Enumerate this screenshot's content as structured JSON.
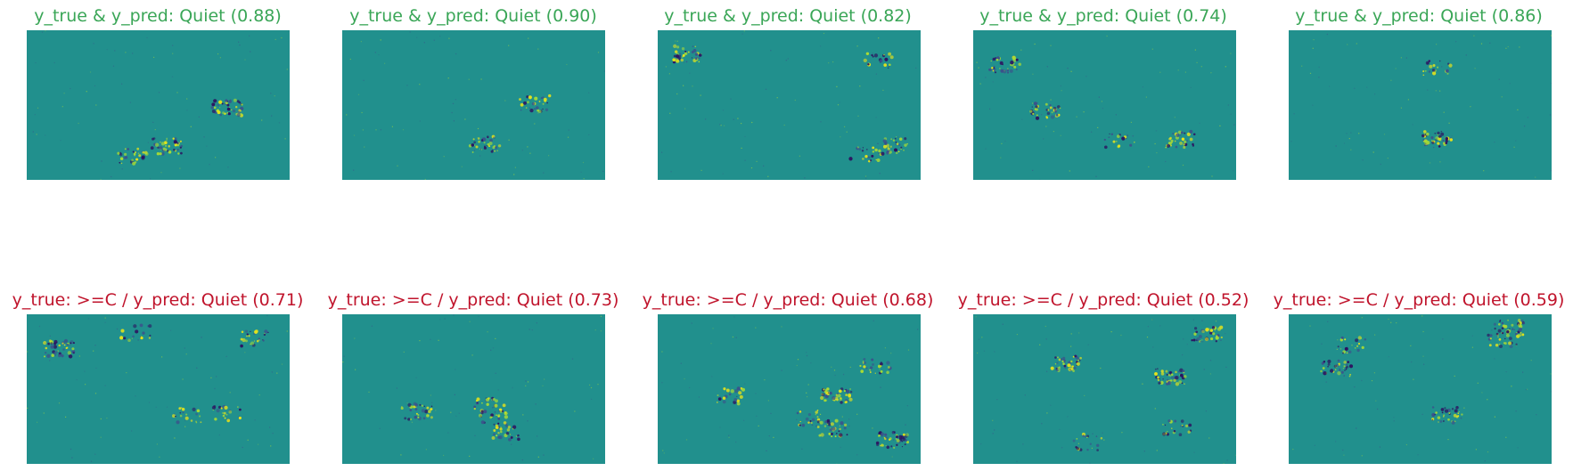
{
  "colors": {
    "correct_title": "#3aa657",
    "wrong_title": "#c0142c",
    "map_background": "#21908d",
    "positive_flux": "#e8e419",
    "positive_flux_mid": "#a8db34",
    "negative_flux": "#2d1160",
    "negative_flux_mid": "#3b528b"
  },
  "rows": [
    {
      "status": "correct",
      "panels": [
        {
          "title": "y_true & y_pred: Quiet (0.88)"
        },
        {
          "title": "y_true & y_pred: Quiet (0.90)"
        },
        {
          "title": "y_true & y_pred: Quiet (0.82)"
        },
        {
          "title": "y_true & y_pred: Quiet (0.74)"
        },
        {
          "title": "y_true & y_pred: Quiet (0.86)"
        }
      ]
    },
    {
      "status": "wrong",
      "panels": [
        {
          "title": "y_true: >=C / y_pred: Quiet (0.71)"
        },
        {
          "title": "y_true: >=C / y_pred: Quiet (0.73)"
        },
        {
          "title": "y_true: >=C / y_pred: Quiet (0.68)"
        },
        {
          "title": "y_true: >=C / y_pred: Quiet (0.52)"
        },
        {
          "title": "y_true: >=C / y_pred: Quiet (0.59)"
        }
      ]
    }
  ]
}
